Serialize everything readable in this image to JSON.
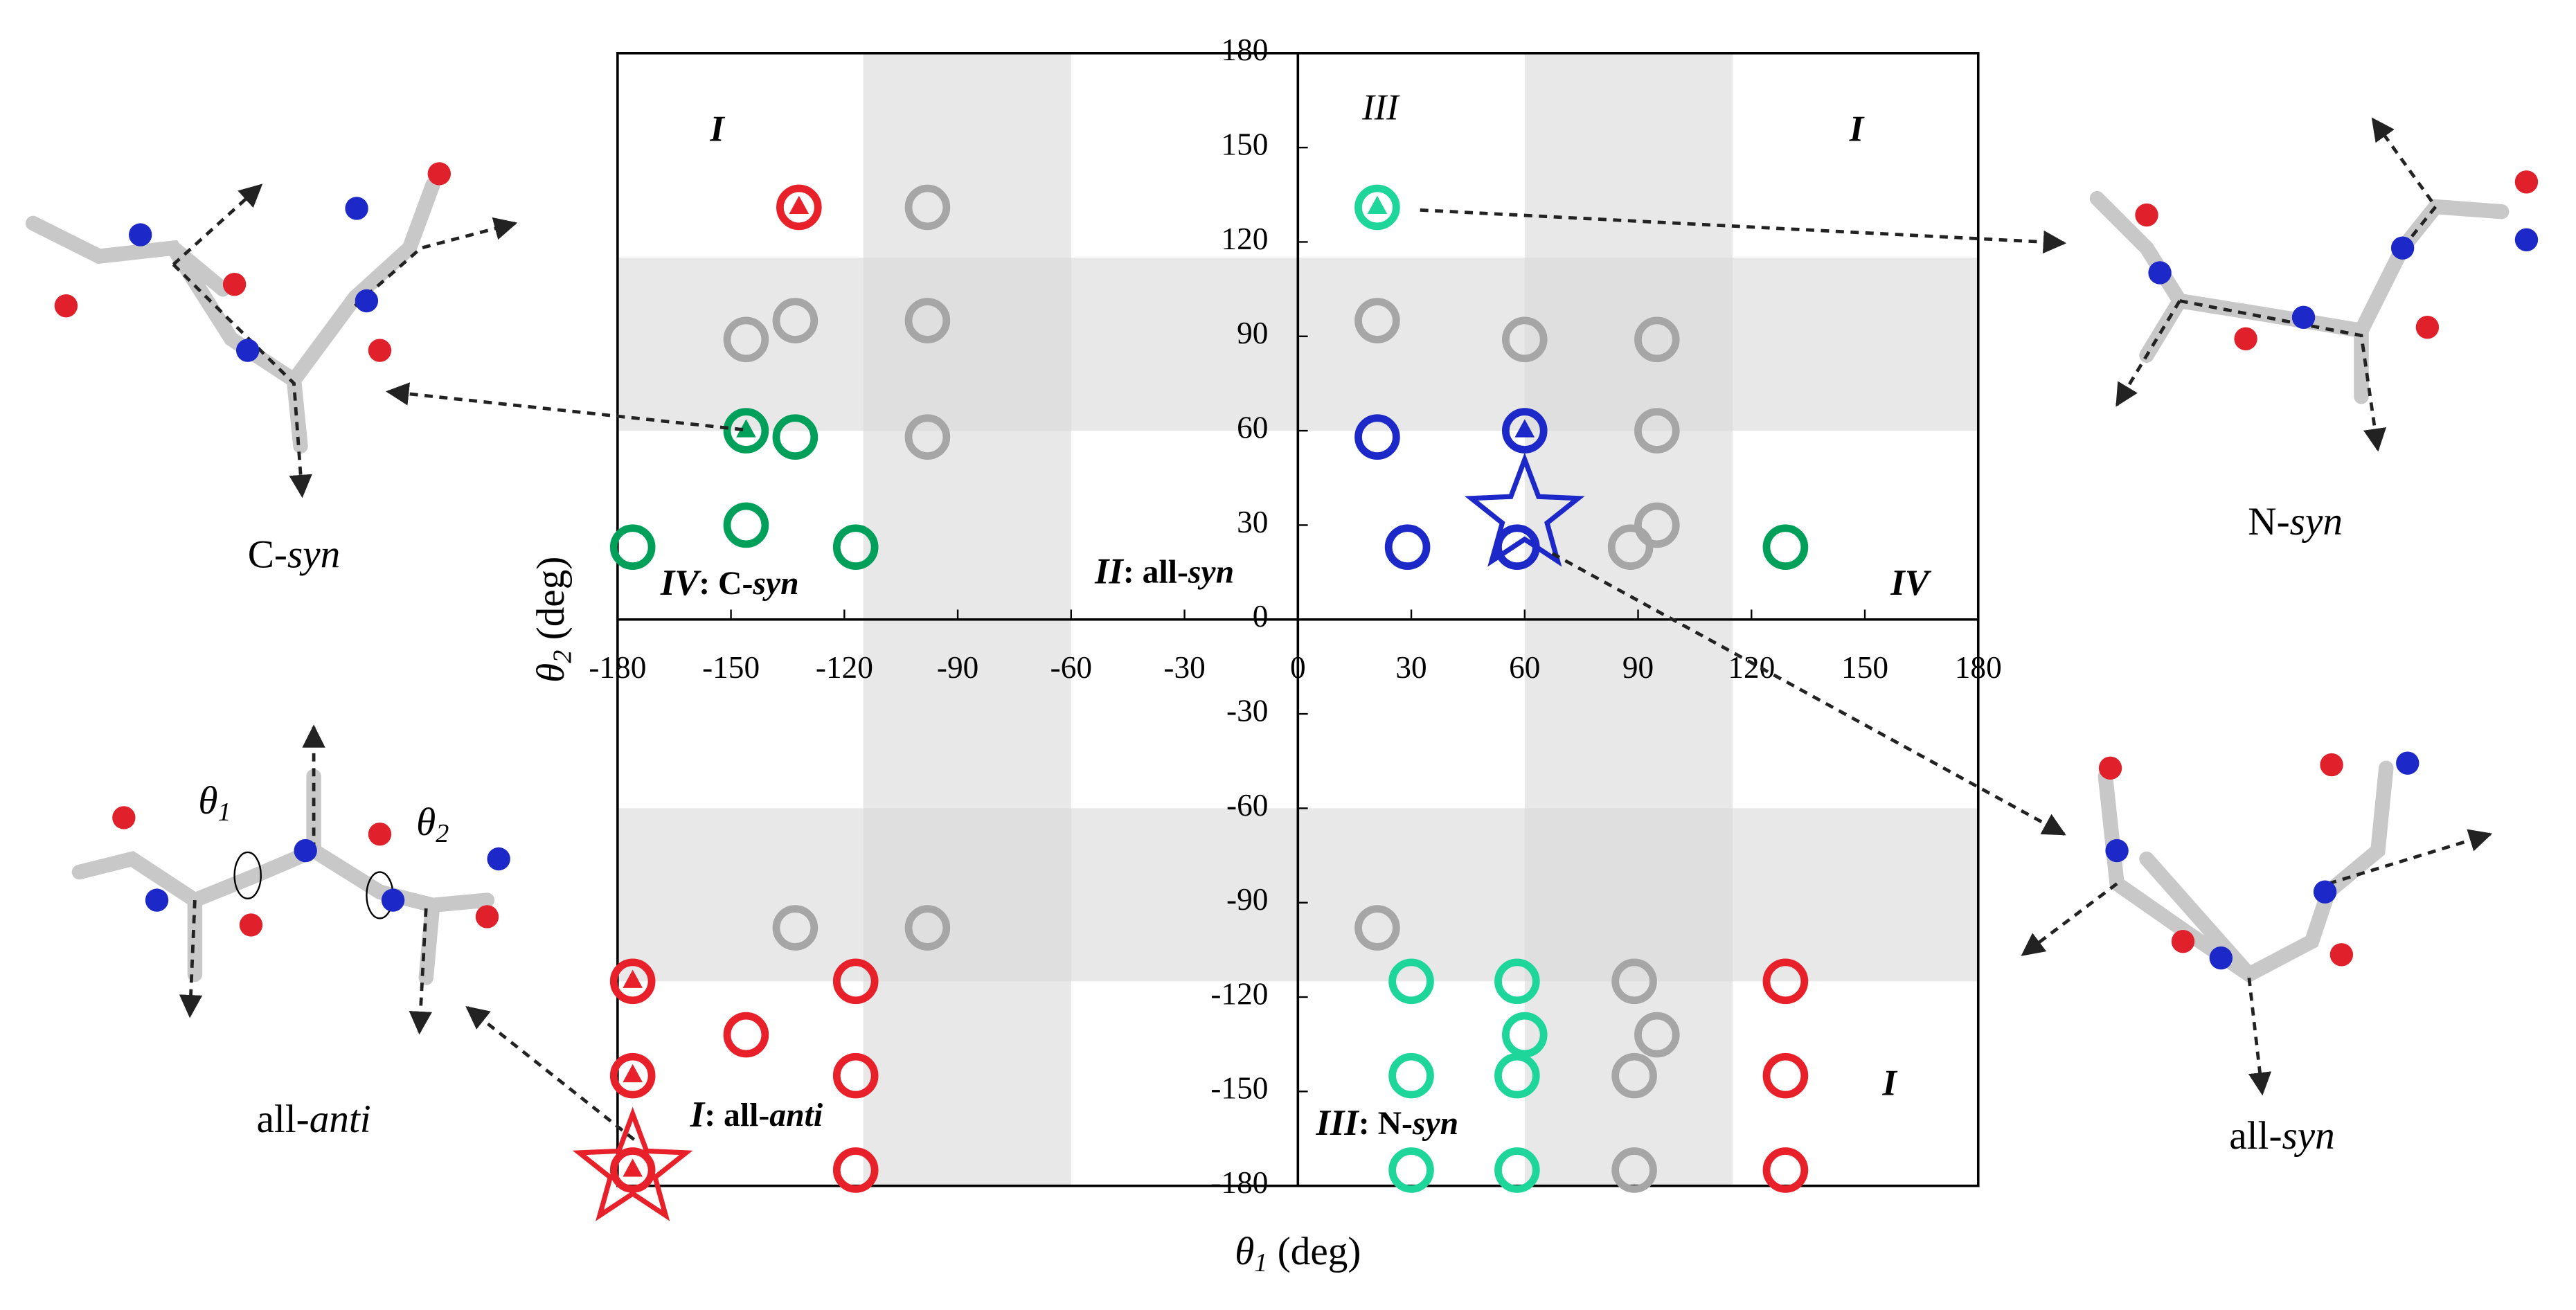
{
  "chart_data": {
    "type": "scatter",
    "x_label": {
      "symbol": "θ",
      "subscript": "1",
      "unit": "(deg)"
    },
    "y_label": {
      "symbol": "θ",
      "subscript": "2",
      "unit": "(deg)"
    },
    "xlim": [
      -180,
      180
    ],
    "ylim": [
      -180,
      180
    ],
    "xticks": [
      -180,
      -150,
      -120,
      -90,
      -60,
      -30,
      0,
      30,
      60,
      90,
      120,
      150,
      180
    ],
    "yticks": [
      -180,
      -150,
      -120,
      -90,
      -60,
      -30,
      0,
      30,
      60,
      90,
      120,
      150,
      180
    ],
    "shaded_bands": {
      "color": "#d8d8d8",
      "x": [
        [
          -115,
          -60
        ],
        [
          60,
          115
        ]
      ],
      "y": [
        [
          60,
          115
        ],
        [
          -115,
          -60
        ]
      ]
    },
    "series": [
      {
        "color": "#e8202a",
        "marker": "circle",
        "x": [
          -117,
          -146,
          -117,
          -117,
          129,
          129,
          129
        ],
        "values": [
          -115,
          -132,
          -145,
          -175,
          -115,
          -145,
          -175
        ]
      },
      {
        "color": "#e8202a",
        "marker": "circle-triangle",
        "x": [
          -132,
          -176,
          -176,
          -176
        ],
        "values": [
          131,
          -115,
          -145,
          -175
        ]
      },
      {
        "color": "#e8202a",
        "marker": "star",
        "x": [
          -176
        ],
        "values": [
          -175
        ]
      },
      {
        "color": "#a6a6a6",
        "marker": "circle",
        "x": [
          -98,
          -146,
          -133,
          -98,
          -98,
          -133,
          -98,
          21,
          60,
          95,
          95,
          95,
          88,
          21,
          89,
          95,
          89,
          89
        ],
        "values": [
          131,
          89,
          95,
          95,
          58,
          -98,
          -98,
          95,
          89,
          89,
          60,
          30,
          23,
          -98,
          -115,
          -132,
          -145,
          -175
        ]
      },
      {
        "color": "#00a05a",
        "marker": "circle",
        "x": [
          -133,
          -146,
          -176,
          -117,
          129
        ],
        "values": [
          58,
          30,
          23,
          23,
          23
        ]
      },
      {
        "color": "#00a05a",
        "marker": "circle-triangle",
        "x": [
          -146
        ],
        "values": [
          60
        ]
      },
      {
        "color": "#1ed59a",
        "marker": "circle",
        "x": [
          30,
          58,
          60,
          30,
          58,
          30,
          58
        ],
        "values": [
          -115,
          -115,
          -132,
          -145,
          -145,
          -175,
          -175
        ]
      },
      {
        "color": "#1ed59a",
        "marker": "circle-triangle",
        "x": [
          21
        ],
        "values": [
          131
        ]
      },
      {
        "color": "#1c28c8",
        "marker": "circle",
        "x": [
          21,
          29,
          58
        ],
        "values": [
          58,
          23,
          23
        ]
      },
      {
        "color": "#1c28c8",
        "marker": "circle-triangle",
        "x": [
          60
        ],
        "values": [
          60
        ]
      },
      {
        "color": "#1c28c8",
        "marker": "star",
        "x": [
          60
        ],
        "values": [
          33
        ]
      }
    ],
    "annotations": [
      [
        "I"
      ],
      [
        "III"
      ],
      [
        "I"
      ],
      [
        "IV",
        ": C-",
        "syn"
      ],
      [
        "II",
        ": all-",
        "syn"
      ],
      [
        "IV"
      ],
      [
        "I",
        ": all-",
        "anti"
      ],
      [
        "III",
        ": N-",
        "syn"
      ],
      [
        "I"
      ]
    ],
    "molecule_labels": [
      [
        "C-",
        "syn"
      ],
      [
        "N-",
        "syn"
      ],
      [
        "all-",
        "anti"
      ],
      [
        "all-",
        "syn"
      ]
    ],
    "torsion_labels": [
      {
        "symbol": "θ",
        "subscript": "1"
      },
      {
        "symbol": "θ",
        "subscript": "2"
      }
    ]
  }
}
